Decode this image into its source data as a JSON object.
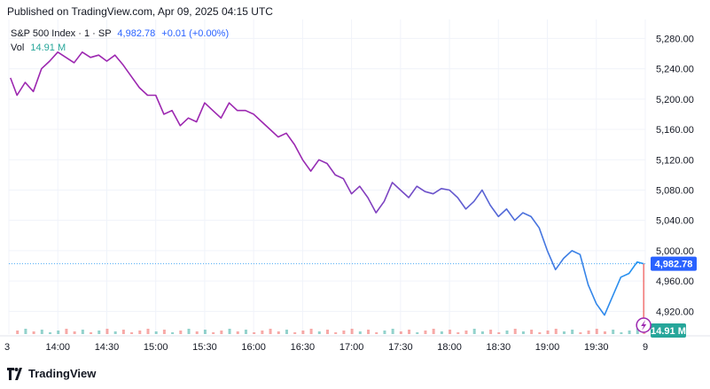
{
  "header": {
    "published": "Published on TradingView.com, Apr 09, 2025 04:15 UTC"
  },
  "legend": {
    "symbol": "S&P 500 Index · 1 · SP",
    "last": "4,982.78",
    "change": "+0.01 (+0.00%)",
    "vol_label": "Vol",
    "vol_value": "14.91 M"
  },
  "footer": {
    "brand": "TradingView"
  },
  "colors": {
    "line_start": "#9c27b0",
    "line_end": "#2196f3",
    "price_tag": "#2962ff",
    "vol_tag": "#26a69a",
    "vol_up": "#26a69a",
    "vol_down": "#ef5350",
    "grid": "#f0f3fa",
    "axis_text": "#131722"
  },
  "chart_data": {
    "type": "line",
    "y_axis": {
      "range": [
        4890,
        5305
      ],
      "ticks": [
        "5,280.00",
        "5,240.00",
        "5,200.00",
        "5,160.00",
        "5,120.00",
        "5,080.00",
        "5,040.00",
        "5,000.00",
        "4,960.00",
        "4,920.00"
      ],
      "tick_values": [
        5280,
        5240,
        5200,
        5160,
        5120,
        5080,
        5040,
        5000,
        4960,
        4920
      ],
      "last_label": "4,982.78",
      "last_value": 4982.78,
      "volume_label": "14.91 M"
    },
    "x_axis": {
      "ticks": [
        "3",
        "14:00",
        "14:30",
        "15:00",
        "15:30",
        "16:00",
        "16:30",
        "17:00",
        "17:30",
        "18:00",
        "18:30",
        "19:00",
        "19:30",
        "9"
      ],
      "range": [
        "13:30",
        "20:00"
      ]
    },
    "series": [
      {
        "x": [
          "13:31",
          "13:35",
          "13:40",
          "13:45",
          "13:50",
          "13:55",
          "14:00",
          "14:05",
          "14:10",
          "14:15",
          "14:20",
          "14:25",
          "14:30",
          "14:35",
          "14:40",
          "14:45",
          "14:50",
          "14:55",
          "15:00",
          "15:05",
          "15:10",
          "15:15",
          "15:20",
          "15:25",
          "15:30",
          "15:35",
          "15:40",
          "15:45",
          "15:50",
          "15:55",
          "16:00",
          "16:05",
          "16:10",
          "16:15",
          "16:20",
          "16:25",
          "16:30",
          "16:35",
          "16:40",
          "16:45",
          "16:50",
          "16:55",
          "17:00",
          "17:05",
          "17:10",
          "17:15",
          "17:20",
          "17:25",
          "17:30",
          "17:35",
          "17:40",
          "17:45",
          "17:50",
          "17:55",
          "18:00",
          "18:05",
          "18:10",
          "18:15",
          "18:20",
          "18:25",
          "18:30",
          "18:35",
          "18:40",
          "18:45",
          "18:50",
          "18:55",
          "19:00",
          "19:05",
          "19:10",
          "19:15",
          "19:20",
          "19:25",
          "19:30",
          "19:35",
          "19:40",
          "19:45",
          "19:50",
          "19:55",
          "19:59"
        ],
        "values": [
          5228,
          5205,
          5222,
          5210,
          5240,
          5250,
          5262,
          5255,
          5248,
          5262,
          5255,
          5258,
          5250,
          5258,
          5245,
          5230,
          5215,
          5205,
          5205,
          5180,
          5185,
          5165,
          5175,
          5170,
          5195,
          5185,
          5175,
          5195,
          5185,
          5185,
          5180,
          5170,
          5160,
          5150,
          5155,
          5140,
          5120,
          5105,
          5120,
          5115,
          5100,
          5095,
          5075,
          5085,
          5070,
          5050,
          5065,
          5090,
          5080,
          5070,
          5085,
          5078,
          5075,
          5082,
          5080,
          5070,
          5055,
          5065,
          5080,
          5060,
          5045,
          5055,
          5040,
          5050,
          5045,
          5030,
          5000,
          4975,
          4990,
          5000,
          4995,
          4955,
          4930,
          4915,
          4940,
          4965,
          4970,
          4985,
          4982.78
        ]
      }
    ],
    "volume": {
      "note": "small volume histogram along the bottom of the price pane",
      "last": 14.91
    },
    "grid": true,
    "legend_position": "top-left"
  }
}
